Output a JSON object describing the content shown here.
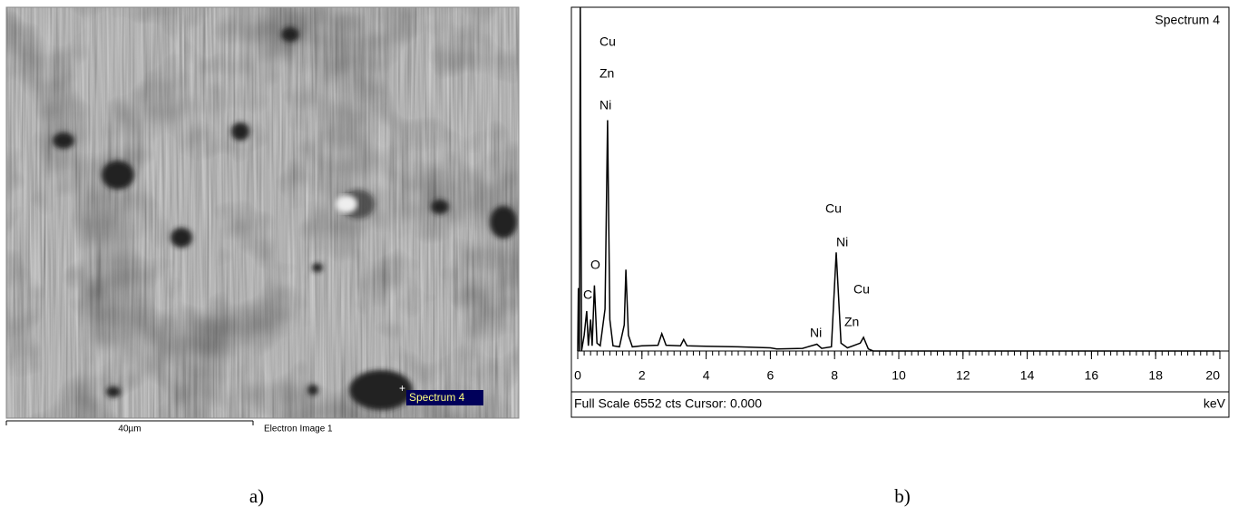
{
  "image_panel": {
    "marker_label": "Spectrum 4",
    "scale_bar": "40µm",
    "image_label": "Electron Image 1",
    "caption": "a)"
  },
  "chart_data": {
    "type": "line",
    "title": "Spectrum 4",
    "x_label": "keV",
    "footer": "Full Scale 6552 cts Cursor: 0.000",
    "caption": "b)",
    "x": [
      0,
      0.02,
      0.05,
      0.08,
      0.12,
      0.2,
      0.28,
      0.33,
      0.4,
      0.45,
      0.52,
      0.6,
      0.7,
      0.85,
      0.93,
      1.0,
      1.1,
      1.3,
      1.45,
      1.5,
      1.58,
      1.7,
      2.0,
      2.5,
      2.62,
      2.75,
      3.2,
      3.3,
      3.4,
      4.0,
      5.0,
      6.0,
      6.2,
      7.0,
      7.45,
      7.6,
      7.9,
      8.05,
      8.2,
      8.4,
      8.8,
      8.9,
      9.05,
      9.2,
      20
    ],
    "values": [
      0,
      1200,
      0,
      6552,
      0,
      300,
      760,
      100,
      600,
      100,
      1250,
      150,
      100,
      800,
      4400,
      600,
      100,
      80,
      500,
      1550,
      300,
      80,
      100,
      110,
      330,
      110,
      100,
      220,
      100,
      90,
      80,
      60,
      40,
      50,
      130,
      50,
      80,
      1880,
      150,
      60,
      150,
      260,
      40,
      0,
      0
    ],
    "color": "#000000",
    "xlim": [
      0,
      20
    ],
    "ylim": [
      0,
      6552
    ],
    "xticks": [
      0,
      2,
      4,
      6,
      8,
      10,
      12,
      14,
      16,
      18,
      20
    ],
    "annotations": [
      "Cu",
      "Zn",
      "Ni",
      "O",
      "C",
      "Cu",
      "Ni",
      "Cu",
      "Zn",
      "Ni"
    ]
  }
}
